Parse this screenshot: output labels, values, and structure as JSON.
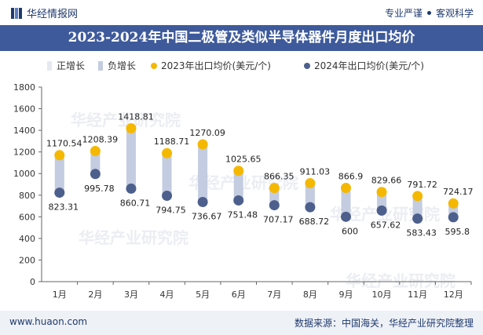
{
  "header": {
    "brand": "华经情报网",
    "tag1": "专业严谨",
    "tag2": "客观科学"
  },
  "title": "2023-2024年中国二极管及类似半导体器件月度出口均价",
  "footer": {
    "left": "www.huaon.com",
    "right": "数据来源：中国海关，华经产业研究院整理"
  },
  "watermark": "华经产业研究院",
  "chart_data": {
    "type": "dumbbell",
    "title": "2023-2024年中国二极管及类似半导体器件月度出口均价",
    "categories": [
      "1月",
      "2月",
      "3月",
      "4月",
      "5月",
      "6月",
      "7月",
      "8月",
      "9月",
      "10月",
      "11月",
      "12月"
    ],
    "series": [
      {
        "name": "2023年出口均价(美元/个)",
        "color": "#f5b800",
        "values": [
          1170.54,
          1208.39,
          1418.81,
          1188.71,
          1270.09,
          1025.65,
          866.35,
          911.03,
          866.9,
          829.66,
          791.72,
          724.17
        ]
      },
      {
        "name": "2024年出口均价(美元/个)",
        "color": "#4d5f8c",
        "values": [
          823.31,
          995.78,
          860.71,
          794.75,
          736.67,
          751.48,
          707.17,
          688.72,
          600,
          657.62,
          583.43,
          595.8
        ]
      }
    ],
    "labels_2023": [
      "1170.54",
      "1208.39",
      "1418.81",
      "1188.71",
      "1270.09",
      "1025.65",
      "866.35",
      "911.03",
      "866.9",
      "829.66",
      "791.72",
      "724.17"
    ],
    "labels_2024": [
      "823.31",
      "995.78",
      "860.71",
      "794.75",
      "736.67",
      "751.48",
      "707.17",
      "688.72",
      "600",
      "657.62",
      "583.43",
      "595.8"
    ],
    "legend": [
      {
        "name": "正增长",
        "color": "#e6e9ef"
      },
      {
        "name": "负增长",
        "color": "#c3cce0"
      },
      {
        "name": "2023年出口均价(美元/个)",
        "color": "#f5b800"
      },
      {
        "name": "2024年出口均价(美元/个)",
        "color": "#4d5f8c"
      }
    ],
    "yticks": [
      "0",
      "200",
      "400",
      "600",
      "800",
      "1000",
      "1200",
      "1400",
      "1600",
      "1800"
    ],
    "ylim": [
      0,
      1800
    ],
    "legend_position": "top",
    "grid": false
  }
}
